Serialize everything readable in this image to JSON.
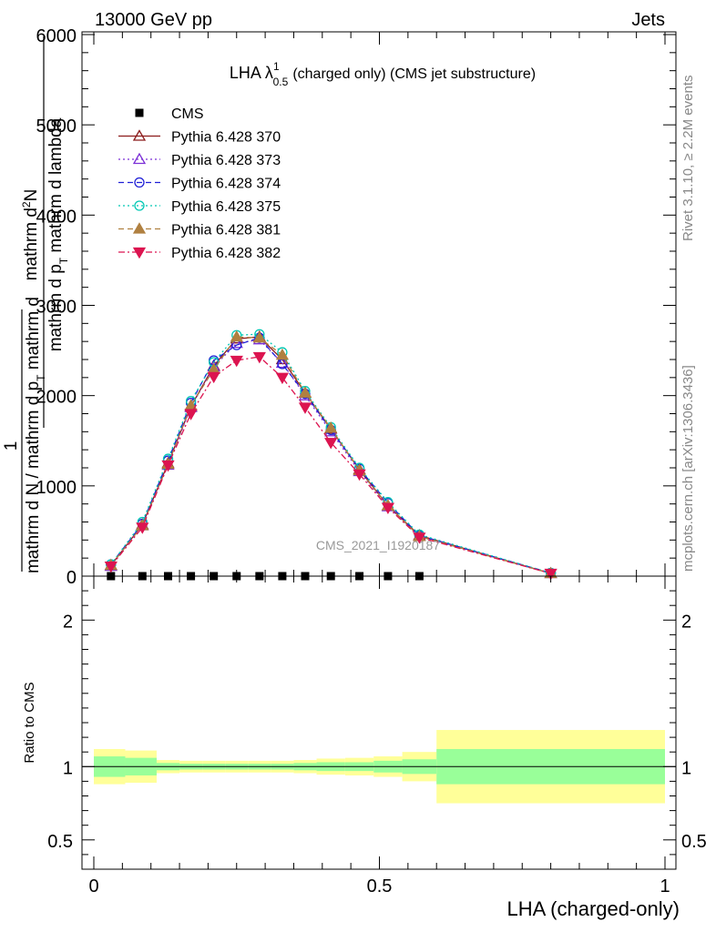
{
  "header": {
    "energy_label": "13000 GeV pp",
    "process_label": "Jets"
  },
  "side_labels": {
    "rivet": "Rivet 3.1.10, ≥ 2.2M events",
    "mcplots": "mcplots.cern.ch [arXiv:1306.3436]"
  },
  "watermark": "CMS_2021_I1920187",
  "chart_data": [
    {
      "type": "line",
      "title_main": "LHA λ",
      "title_sup": "1",
      "title_sub": "0.5",
      "title_rest": "(charged only) (CMS jet substructure)",
      "ylabel_numerator": "1",
      "ylabel_denominator": "mathrm d N / mathrm d p",
      "ylabel_denominator_sub": "T",
      "ylabel_denominator_rest": " mathrm d",
      "ylabel_numerator2": "mathrm d",
      "ylabel_numerator2_sup": "2",
      "ylabel_numerator2_rest": "N",
      "ylabel_denominator2": "mathrm d p",
      "ylabel_denominator2_sub": "T",
      "ylabel_denominator2_rest": " mathrm d lambda",
      "xlim": [
        0,
        1
      ],
      "ylim": [
        0,
        6000
      ],
      "yticks": [
        0,
        1000,
        2000,
        3000,
        4000,
        5000,
        6000
      ],
      "ytick_labels": [
        "0",
        "1000",
        "2000",
        "3000",
        "4000",
        "5000",
        "6000"
      ],
      "legend_position": "top-left",
      "x": [
        0.03,
        0.085,
        0.13,
        0.17,
        0.21,
        0.25,
        0.29,
        0.33,
        0.37,
        0.415,
        0.465,
        0.515,
        0.57,
        0.8
      ],
      "series": [
        {
          "name": "CMS",
          "color": "#000000",
          "marker": "square-filled",
          "dash": "none",
          "x": [
            0.03,
            0.085,
            0.13,
            0.17,
            0.21,
            0.25,
            0.29,
            0.33,
            0.37,
            0.415,
            0.465,
            0.515,
            0.57
          ],
          "values": [
            0,
            0,
            0,
            0,
            0,
            0,
            0,
            0,
            0,
            0,
            0,
            0,
            0
          ]
        },
        {
          "name": "Pythia 6.428 370",
          "color": "#8b1a1a",
          "marker": "triangle-open",
          "dash": "solid",
          "values": [
            120,
            570,
            1250,
            1880,
            2330,
            2630,
            2650,
            2400,
            2030,
            1630,
            1180,
            780,
            450,
            30
          ]
        },
        {
          "name": "Pythia 6.428 373",
          "color": "#7b2fd6",
          "marker": "triangle-open",
          "dash": "dotted",
          "values": [
            110,
            560,
            1230,
            1870,
            2320,
            2580,
            2620,
            2360,
            2000,
            1600,
            1160,
            770,
            440,
            30
          ]
        },
        {
          "name": "Pythia 6.428 374",
          "color": "#1f1fd6",
          "marker": "circle-open",
          "dash": "dashed",
          "values": [
            130,
            580,
            1280,
            1920,
            2390,
            2560,
            2640,
            2350,
            2020,
            1620,
            1190,
            810,
            450,
            35
          ]
        },
        {
          "name": "Pythia 6.428 375",
          "color": "#00c8b4",
          "marker": "circle-open",
          "dash": "dotted",
          "values": [
            130,
            600,
            1300,
            1940,
            2370,
            2670,
            2680,
            2480,
            2050,
            1650,
            1200,
            820,
            460,
            35
          ]
        },
        {
          "name": "Pythia 6.428 381",
          "color": "#b08040",
          "marker": "triangle-filled",
          "dash": "dashed",
          "values": [
            120,
            560,
            1240,
            1890,
            2290,
            2650,
            2640,
            2450,
            2030,
            1640,
            1170,
            780,
            440,
            30
          ]
        },
        {
          "name": "Pythia 6.428 382",
          "color": "#dc1450",
          "marker": "triangle-down-filled",
          "dash": "dashdot",
          "values": [
            110,
            540,
            1230,
            1800,
            2210,
            2390,
            2430,
            2200,
            1870,
            1480,
            1130,
            760,
            430,
            30
          ]
        }
      ]
    },
    {
      "type": "area",
      "ylabel": "Ratio to CMS",
      "xlabel": "LHA (charged-only)",
      "xlim": [
        0,
        1
      ],
      "ylim": [
        0.3,
        2.3
      ],
      "xticks": [
        0,
        0.5,
        1
      ],
      "xtick_labels": [
        "0",
        "0.5",
        "1"
      ],
      "yticks": [
        0.5,
        1,
        2
      ],
      "ytick_labels": [
        "0.5",
        "1",
        "2"
      ],
      "reference_line": 1,
      "band_colors": {
        "inner": "#99ff99",
        "outer": "#ffff99"
      },
      "bins": [
        {
          "lo": 0.0,
          "hi": 0.055,
          "inner": [
            0.93,
            1.07
          ],
          "outer": [
            0.88,
            1.12
          ]
        },
        {
          "lo": 0.055,
          "hi": 0.11,
          "inner": [
            0.94,
            1.06
          ],
          "outer": [
            0.89,
            1.11
          ]
        },
        {
          "lo": 0.11,
          "hi": 0.15,
          "inner": [
            0.975,
            1.025
          ],
          "outer": [
            0.955,
            1.045
          ]
        },
        {
          "lo": 0.15,
          "hi": 0.19,
          "inner": [
            0.98,
            1.02
          ],
          "outer": [
            0.96,
            1.04
          ]
        },
        {
          "lo": 0.19,
          "hi": 0.23,
          "inner": [
            0.98,
            1.02
          ],
          "outer": [
            0.96,
            1.04
          ]
        },
        {
          "lo": 0.23,
          "hi": 0.27,
          "inner": [
            0.98,
            1.02
          ],
          "outer": [
            0.96,
            1.04
          ]
        },
        {
          "lo": 0.27,
          "hi": 0.31,
          "inner": [
            0.98,
            1.02
          ],
          "outer": [
            0.96,
            1.04
          ]
        },
        {
          "lo": 0.31,
          "hi": 0.35,
          "inner": [
            0.98,
            1.02
          ],
          "outer": [
            0.96,
            1.04
          ]
        },
        {
          "lo": 0.35,
          "hi": 0.39,
          "inner": [
            0.975,
            1.025
          ],
          "outer": [
            0.955,
            1.045
          ]
        },
        {
          "lo": 0.39,
          "hi": 0.44,
          "inner": [
            0.97,
            1.03
          ],
          "outer": [
            0.945,
            1.055
          ]
        },
        {
          "lo": 0.44,
          "hi": 0.49,
          "inner": [
            0.97,
            1.03
          ],
          "outer": [
            0.94,
            1.06
          ]
        },
        {
          "lo": 0.49,
          "hi": 0.54,
          "inner": [
            0.96,
            1.04
          ],
          "outer": [
            0.93,
            1.07
          ]
        },
        {
          "lo": 0.54,
          "hi": 0.6,
          "inner": [
            0.95,
            1.05
          ],
          "outer": [
            0.9,
            1.1
          ]
        },
        {
          "lo": 0.6,
          "hi": 1.0,
          "inner": [
            0.88,
            1.12
          ],
          "outer": [
            0.75,
            1.25
          ]
        }
      ]
    }
  ]
}
